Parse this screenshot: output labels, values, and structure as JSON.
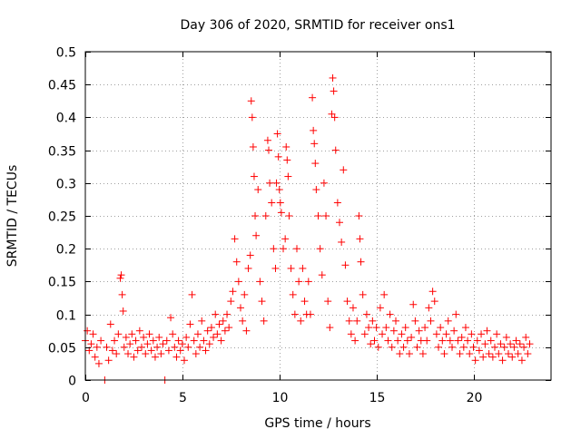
{
  "chart_data": {
    "type": "scatter",
    "title": "Day 306 of 2020, SRMTID for receiver ons1",
    "xlabel": "GPS time / hours",
    "ylabel": "SRMTID / TECUs",
    "xlim": [
      0,
      24
    ],
    "ylim": [
      0,
      0.5
    ],
    "xticks": [
      0,
      5,
      10,
      15,
      20
    ],
    "xtick_labels": [
      "0",
      "5",
      "10",
      "15",
      "20"
    ],
    "yticks": [
      0,
      0.05,
      0.1,
      0.15,
      0.2,
      0.25,
      0.3,
      0.35,
      0.4,
      0.45,
      0.5
    ],
    "ytick_labels": [
      "0",
      "0.05",
      "0.1",
      "0.15",
      "0.2",
      "0.25",
      "0.3",
      "0.35",
      "0.4",
      "0.45",
      "0.5"
    ],
    "grid": true,
    "marker": "plus",
    "color": "#ff0000",
    "series": [
      {
        "name": "SRMTID",
        "points": [
          [
            0.0,
            0.06
          ],
          [
            0.1,
            0.075
          ],
          [
            0.2,
            0.045
          ],
          [
            0.3,
            0.055
          ],
          [
            0.4,
            0.07
          ],
          [
            0.5,
            0.035
          ],
          [
            0.6,
            0.05
          ],
          [
            0.7,
            0.025
          ],
          [
            0.8,
            0.06
          ],
          [
            1.0,
            0.0
          ],
          [
            1.1,
            0.05
          ],
          [
            1.2,
            0.03
          ],
          [
            1.3,
            0.085
          ],
          [
            1.4,
            0.045
          ],
          [
            1.5,
            0.06
          ],
          [
            1.6,
            0.04
          ],
          [
            1.7,
            0.07
          ],
          [
            1.8,
            0.155
          ],
          [
            1.85,
            0.16
          ],
          [
            1.9,
            0.13
          ],
          [
            1.95,
            0.105
          ],
          [
            2.0,
            0.05
          ],
          [
            2.1,
            0.065
          ],
          [
            2.2,
            0.04
          ],
          [
            2.3,
            0.055
          ],
          [
            2.4,
            0.07
          ],
          [
            2.5,
            0.035
          ],
          [
            2.6,
            0.06
          ],
          [
            2.7,
            0.045
          ],
          [
            2.8,
            0.075
          ],
          [
            2.9,
            0.05
          ],
          [
            3.0,
            0.065
          ],
          [
            3.1,
            0.04
          ],
          [
            3.2,
            0.055
          ],
          [
            3.3,
            0.07
          ],
          [
            3.4,
            0.045
          ],
          [
            3.5,
            0.06
          ],
          [
            3.6,
            0.035
          ],
          [
            3.7,
            0.05
          ],
          [
            3.8,
            0.065
          ],
          [
            3.9,
            0.04
          ],
          [
            4.0,
            0.055
          ],
          [
            4.1,
            0.0
          ],
          [
            4.2,
            0.06
          ],
          [
            4.3,
            0.045
          ],
          [
            4.4,
            0.095
          ],
          [
            4.5,
            0.07
          ],
          [
            4.6,
            0.05
          ],
          [
            4.7,
            0.035
          ],
          [
            4.8,
            0.06
          ],
          [
            4.9,
            0.045
          ],
          [
            5.0,
            0.055
          ],
          [
            5.1,
            0.03
          ],
          [
            5.2,
            0.065
          ],
          [
            5.3,
            0.05
          ],
          [
            5.4,
            0.085
          ],
          [
            5.5,
            0.13
          ],
          [
            5.6,
            0.06
          ],
          [
            5.7,
            0.04
          ],
          [
            5.8,
            0.07
          ],
          [
            5.9,
            0.05
          ],
          [
            6.0,
            0.09
          ],
          [
            6.1,
            0.06
          ],
          [
            6.2,
            0.045
          ],
          [
            6.3,
            0.075
          ],
          [
            6.4,
            0.055
          ],
          [
            6.5,
            0.08
          ],
          [
            6.6,
            0.065
          ],
          [
            6.7,
            0.1
          ],
          [
            6.8,
            0.07
          ],
          [
            6.9,
            0.085
          ],
          [
            7.0,
            0.06
          ],
          [
            7.1,
            0.09
          ],
          [
            7.2,
            0.075
          ],
          [
            7.3,
            0.1
          ],
          [
            7.4,
            0.08
          ],
          [
            7.5,
            0.12
          ],
          [
            7.6,
            0.135
          ],
          [
            7.7,
            0.215
          ],
          [
            7.8,
            0.18
          ],
          [
            7.9,
            0.15
          ],
          [
            8.0,
            0.11
          ],
          [
            8.1,
            0.09
          ],
          [
            8.2,
            0.13
          ],
          [
            8.3,
            0.075
          ],
          [
            8.4,
            0.17
          ],
          [
            8.5,
            0.19
          ],
          [
            8.55,
            0.425
          ],
          [
            8.6,
            0.4
          ],
          [
            8.65,
            0.355
          ],
          [
            8.7,
            0.31
          ],
          [
            8.75,
            0.25
          ],
          [
            8.8,
            0.22
          ],
          [
            8.9,
            0.29
          ],
          [
            9.0,
            0.15
          ],
          [
            9.1,
            0.12
          ],
          [
            9.2,
            0.09
          ],
          [
            9.3,
            0.25
          ],
          [
            9.4,
            0.365
          ],
          [
            9.45,
            0.35
          ],
          [
            9.5,
            0.3
          ],
          [
            9.6,
            0.27
          ],
          [
            9.7,
            0.2
          ],
          [
            9.8,
            0.17
          ],
          [
            9.85,
            0.3
          ],
          [
            9.9,
            0.375
          ],
          [
            9.95,
            0.34
          ],
          [
            10.0,
            0.29
          ],
          [
            10.05,
            0.27
          ],
          [
            10.1,
            0.255
          ],
          [
            10.2,
            0.2
          ],
          [
            10.3,
            0.215
          ],
          [
            10.35,
            0.355
          ],
          [
            10.4,
            0.335
          ],
          [
            10.45,
            0.31
          ],
          [
            10.5,
            0.25
          ],
          [
            10.6,
            0.17
          ],
          [
            10.7,
            0.13
          ],
          [
            10.8,
            0.1
          ],
          [
            10.9,
            0.2
          ],
          [
            11.0,
            0.15
          ],
          [
            11.1,
            0.09
          ],
          [
            11.2,
            0.17
          ],
          [
            11.3,
            0.12
          ],
          [
            11.4,
            0.1
          ],
          [
            11.5,
            0.15
          ],
          [
            11.6,
            0.1
          ],
          [
            11.7,
            0.43
          ],
          [
            11.75,
            0.38
          ],
          [
            11.8,
            0.36
          ],
          [
            11.85,
            0.33
          ],
          [
            11.9,
            0.29
          ],
          [
            12.0,
            0.25
          ],
          [
            12.1,
            0.2
          ],
          [
            12.2,
            0.16
          ],
          [
            12.3,
            0.3
          ],
          [
            12.4,
            0.25
          ],
          [
            12.5,
            0.12
          ],
          [
            12.6,
            0.08
          ],
          [
            12.7,
            0.405
          ],
          [
            12.75,
            0.46
          ],
          [
            12.8,
            0.44
          ],
          [
            12.85,
            0.4
          ],
          [
            12.9,
            0.35
          ],
          [
            13.0,
            0.27
          ],
          [
            13.1,
            0.24
          ],
          [
            13.2,
            0.21
          ],
          [
            13.3,
            0.32
          ],
          [
            13.4,
            0.175
          ],
          [
            13.5,
            0.12
          ],
          [
            13.6,
            0.09
          ],
          [
            13.7,
            0.07
          ],
          [
            13.8,
            0.11
          ],
          [
            13.9,
            0.06
          ],
          [
            14.0,
            0.09
          ],
          [
            14.1,
            0.25
          ],
          [
            14.15,
            0.215
          ],
          [
            14.2,
            0.18
          ],
          [
            14.3,
            0.13
          ],
          [
            14.4,
            0.07
          ],
          [
            14.5,
            0.1
          ],
          [
            14.6,
            0.08
          ],
          [
            14.7,
            0.055
          ],
          [
            14.8,
            0.09
          ],
          [
            14.9,
            0.06
          ],
          [
            15.0,
            0.08
          ],
          [
            15.1,
            0.05
          ],
          [
            15.2,
            0.11
          ],
          [
            15.3,
            0.07
          ],
          [
            15.4,
            0.13
          ],
          [
            15.5,
            0.08
          ],
          [
            15.6,
            0.06
          ],
          [
            15.7,
            0.1
          ],
          [
            15.8,
            0.05
          ],
          [
            15.9,
            0.075
          ],
          [
            16.0,
            0.09
          ],
          [
            16.1,
            0.06
          ],
          [
            16.2,
            0.04
          ],
          [
            16.3,
            0.07
          ],
          [
            16.4,
            0.05
          ],
          [
            16.5,
            0.08
          ],
          [
            16.6,
            0.06
          ],
          [
            16.7,
            0.04
          ],
          [
            16.8,
            0.065
          ],
          [
            16.9,
            0.115
          ],
          [
            17.0,
            0.09
          ],
          [
            17.1,
            0.05
          ],
          [
            17.2,
            0.075
          ],
          [
            17.3,
            0.06
          ],
          [
            17.4,
            0.04
          ],
          [
            17.5,
            0.08
          ],
          [
            17.6,
            0.06
          ],
          [
            17.7,
            0.11
          ],
          [
            17.8,
            0.09
          ],
          [
            17.9,
            0.135
          ],
          [
            18.0,
            0.12
          ],
          [
            18.1,
            0.07
          ],
          [
            18.2,
            0.05
          ],
          [
            18.3,
            0.08
          ],
          [
            18.4,
            0.06
          ],
          [
            18.5,
            0.04
          ],
          [
            18.6,
            0.07
          ],
          [
            18.7,
            0.09
          ],
          [
            18.8,
            0.06
          ],
          [
            18.9,
            0.05
          ],
          [
            19.0,
            0.075
          ],
          [
            19.1,
            0.1
          ],
          [
            19.2,
            0.06
          ],
          [
            19.3,
            0.04
          ],
          [
            19.4,
            0.065
          ],
          [
            19.5,
            0.05
          ],
          [
            19.6,
            0.08
          ],
          [
            19.7,
            0.06
          ],
          [
            19.8,
            0.04
          ],
          [
            19.9,
            0.07
          ],
          [
            20.0,
            0.05
          ],
          [
            20.1,
            0.03
          ],
          [
            20.2,
            0.06
          ],
          [
            20.3,
            0.045
          ],
          [
            20.4,
            0.07
          ],
          [
            20.5,
            0.035
          ],
          [
            20.6,
            0.055
          ],
          [
            20.7,
            0.075
          ],
          [
            20.8,
            0.04
          ],
          [
            20.9,
            0.06
          ],
          [
            21.0,
            0.035
          ],
          [
            21.1,
            0.05
          ],
          [
            21.2,
            0.07
          ],
          [
            21.3,
            0.04
          ],
          [
            21.4,
            0.055
          ],
          [
            21.5,
            0.03
          ],
          [
            21.6,
            0.05
          ],
          [
            21.7,
            0.065
          ],
          [
            21.8,
            0.04
          ],
          [
            21.9,
            0.055
          ],
          [
            22.0,
            0.035
          ],
          [
            22.1,
            0.05
          ],
          [
            22.2,
            0.06
          ],
          [
            22.3,
            0.04
          ],
          [
            22.4,
            0.055
          ],
          [
            22.5,
            0.03
          ],
          [
            22.6,
            0.05
          ],
          [
            22.7,
            0.065
          ],
          [
            22.8,
            0.04
          ],
          [
            22.9,
            0.055
          ]
        ]
      }
    ]
  }
}
